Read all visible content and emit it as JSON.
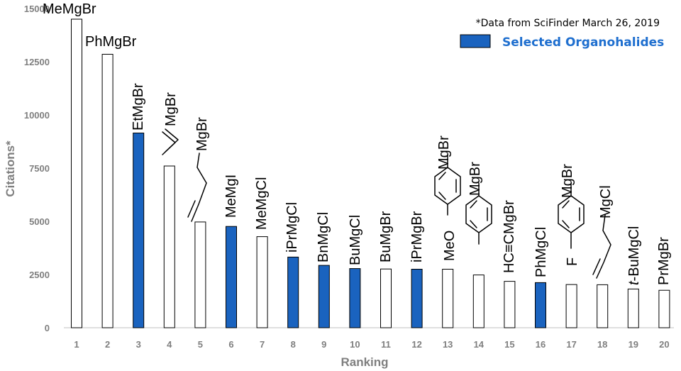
{
  "chart_data": {
    "type": "bar",
    "xlabel": "Ranking",
    "ylabel": "Citations*",
    "ylim": [
      0,
      15000
    ],
    "yticks": [
      0,
      2500,
      5000,
      7500,
      10000,
      12500,
      15000
    ],
    "categories": [
      "1",
      "2",
      "3",
      "4",
      "5",
      "6",
      "7",
      "8",
      "9",
      "10",
      "11",
      "12",
      "13",
      "14",
      "15",
      "16",
      "17",
      "18",
      "19",
      "20"
    ],
    "values": [
      14500,
      12850,
      9150,
      7600,
      4970,
      4760,
      4280,
      3320,
      2930,
      2780,
      2760,
      2750,
      2750,
      2480,
      2180,
      2120,
      2030,
      2020,
      1820,
      1760
    ],
    "selected": [
      false,
      false,
      true,
      false,
      false,
      true,
      false,
      true,
      true,
      true,
      false,
      true,
      false,
      false,
      false,
      true,
      false,
      false,
      false,
      false
    ],
    "bar_labels": [
      "MeMgBr",
      "PhMgBr",
      "EtMgBr",
      "MgBr",
      "MgBr",
      "MeMgI",
      "MeMgCl",
      "iPrMgCl",
      "BnMgCl",
      "BuMgCl",
      "BuMgBr",
      "iPrMgBr",
      "MgBr",
      "MgBr",
      "HC≡CMgBr",
      "PhMgCl",
      "MgBr",
      "MgCl",
      "t-BuMgCl",
      "PrMgBr"
    ],
    "structure_text": {
      "r13": "MeO",
      "r17": "F"
    },
    "source_note": "*Data from SciFinder March 26, 2019",
    "legend": {
      "label": "Selected Organohalides",
      "position": "top-right"
    }
  },
  "colors": {
    "selected_fill": "#1a63bf",
    "unselected_fill": "#ffffff",
    "bar_stroke": "#000000",
    "axis_text": "#7f7f7f",
    "legend_text": "#1f6fcf"
  }
}
